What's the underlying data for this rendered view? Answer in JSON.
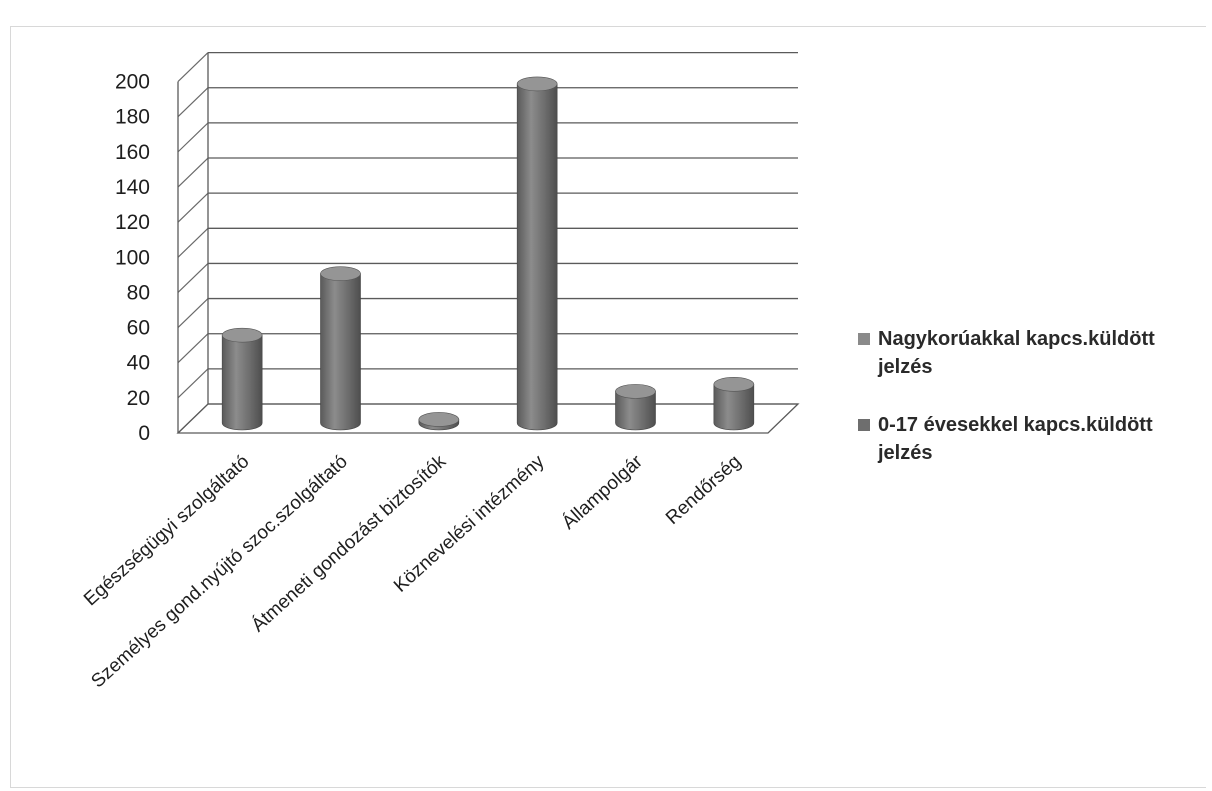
{
  "chart_data": {
    "type": "bar",
    "style": "3d-cylinder",
    "categories": [
      "Egészségügyi szolgáltató",
      "Személyes gond.nyújtó szoc.szolgáltató",
      "Átmeneti gondozást biztosítók",
      "Köznevelési intézmény",
      "Állampolgár",
      "Rendőrség"
    ],
    "series": [
      {
        "name": "Nagykorúakkal kapcs.küldött jelzés",
        "values": [
          0,
          0,
          0,
          0,
          0,
          0
        ],
        "color": "#8a8a8a"
      },
      {
        "name": "0-17 évesekkel kapcs.küldött jelzés",
        "values": [
          50,
          85,
          2,
          193,
          18,
          22
        ],
        "color": "#6e6e6e"
      }
    ],
    "ylim": [
      0,
      200
    ],
    "yticks": [
      0,
      20,
      40,
      60,
      80,
      100,
      120,
      140,
      160,
      180,
      200
    ],
    "grid": true,
    "legend_position": "right",
    "title": "",
    "xlabel": "",
    "ylabel": ""
  }
}
